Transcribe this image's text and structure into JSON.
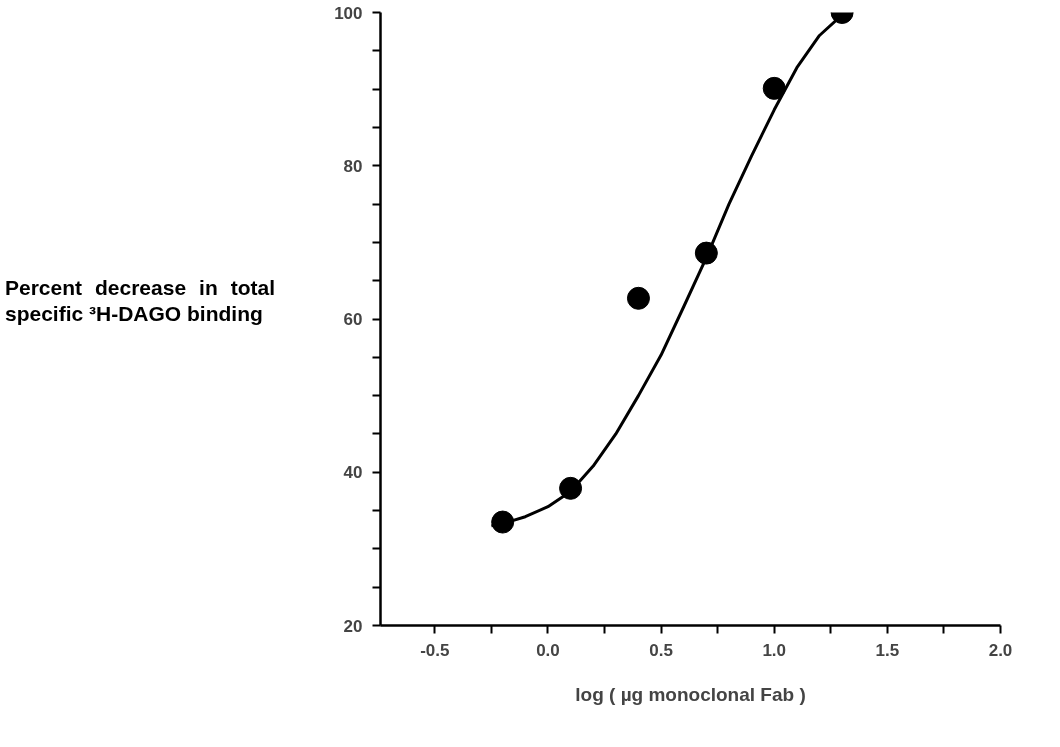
{
  "chart_data": {
    "type": "scatter",
    "xlabel": "log ( µg monoclonal Fab )",
    "ylabel": "Percent decrease in total specific ³H-DAGO binding",
    "xlim": [
      -0.74,
      2.0
    ],
    "ylim": [
      20,
      100
    ],
    "xticks": [
      -0.5,
      {
        "value": -0.25,
        "label": null
      },
      {
        "value": 0,
        "label": "0.0"
      },
      {
        "value": 0.25,
        "label": null
      },
      0.5,
      {
        "value": 0.75,
        "label": null
      },
      {
        "value": 1,
        "label": "1.0"
      },
      {
        "value": 1.25,
        "label": null
      },
      1.5,
      {
        "value": 1.75,
        "label": null
      },
      {
        "value": 2,
        "label": "2.0"
      }
    ],
    "yticks": [
      20,
      {
        "value": 25,
        "label": null
      },
      {
        "value": 30,
        "label": null
      },
      {
        "value": 35,
        "label": null
      },
      40,
      {
        "value": 45,
        "label": null
      },
      {
        "value": 50,
        "label": null
      },
      {
        "value": 55,
        "label": null
      },
      60,
      {
        "value": 65,
        "label": null
      },
      {
        "value": 70,
        "label": null
      },
      {
        "value": 75,
        "label": null
      },
      80,
      {
        "value": 85,
        "label": null
      },
      {
        "value": 90,
        "label": null
      },
      {
        "value": 95,
        "label": null
      },
      100
    ],
    "grid": false,
    "series": [
      {
        "color": "#000000",
        "marker": "circle",
        "x": [
          -0.2,
          0.1,
          0.4,
          0.7,
          1.0,
          1.3
        ],
        "values": [
          33.5,
          37.9,
          62.7,
          68.6,
          90.1,
          100
        ]
      },
      {
        "type": "line",
        "color": "#000000",
        "line_style": "solid",
        "x": [
          -0.25,
          -0.2,
          -0.1,
          0.0,
          0.1,
          0.2,
          0.3,
          0.4,
          0.5,
          0.6,
          0.7,
          0.8,
          0.9,
          1.0,
          1.1,
          1.2,
          1.3
        ],
        "values": [
          33.0,
          33.3,
          34.2,
          35.5,
          37.5,
          40.8,
          45.0,
          50.0,
          55.3,
          61.6,
          68.0,
          75.0,
          81.3,
          87.3,
          92.8,
          97.0,
          99.7
        ]
      }
    ]
  }
}
